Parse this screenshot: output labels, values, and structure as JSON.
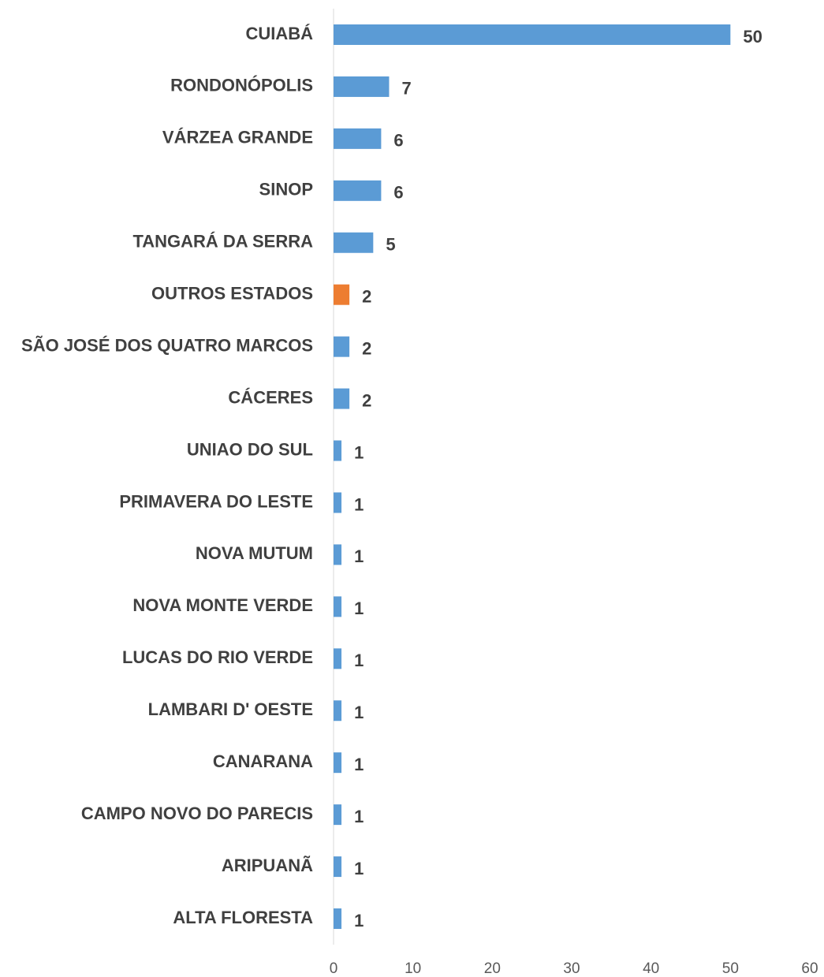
{
  "chart_data": {
    "type": "bar",
    "orientation": "horizontal",
    "categories": [
      "CUIABÁ",
      "RONDONÓPOLIS",
      "VÁRZEA GRANDE",
      "SINOP",
      "TANGARÁ DA SERRA",
      "OUTROS ESTADOS",
      "SÃO JOSÉ DOS QUATRO MARCOS",
      "CÁCERES",
      "UNIAO DO SUL",
      "PRIMAVERA DO LESTE",
      "NOVA MUTUM",
      "NOVA MONTE VERDE",
      "LUCAS DO RIO VERDE",
      "LAMBARI D' OESTE",
      "CANARANA",
      "CAMPO NOVO DO PARECIS",
      "ARIPUANÃ",
      "ALTA FLORESTA"
    ],
    "values": [
      50,
      7,
      6,
      6,
      5,
      2,
      2,
      2,
      1,
      1,
      1,
      1,
      1,
      1,
      1,
      1,
      1,
      1
    ],
    "colors": [
      "#5b9bd5",
      "#5b9bd5",
      "#5b9bd5",
      "#5b9bd5",
      "#5b9bd5",
      "#ed7d31",
      "#5b9bd5",
      "#5b9bd5",
      "#5b9bd5",
      "#5b9bd5",
      "#5b9bd5",
      "#5b9bd5",
      "#5b9bd5",
      "#5b9bd5",
      "#5b9bd5",
      "#5b9bd5",
      "#5b9bd5",
      "#5b9bd5"
    ],
    "xlim": [
      0,
      60
    ],
    "xticks": [
      0,
      10,
      20,
      30,
      40,
      50,
      60
    ],
    "grid": false
  }
}
